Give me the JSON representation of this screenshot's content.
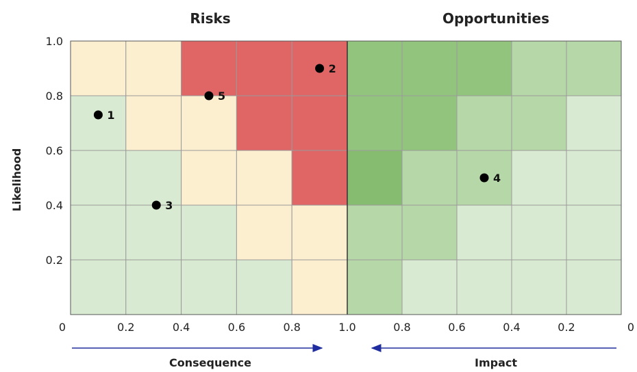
{
  "chart_data": {
    "type": "heatmap",
    "panels": [
      {
        "title": "Risks",
        "xlabel": "Consequence",
        "x_ticks": [
          "0",
          "0.2",
          "0.4",
          "0.6",
          "0.8",
          "1.0"
        ],
        "x_range": [
          0,
          1
        ],
        "x_direction": "increasing-right",
        "cells_rows_top_to_bottom": [
          [
            "#fcefcf",
            "#fcefcf",
            "#e06666",
            "#e06666",
            "#e06666"
          ],
          [
            "#d9ead3",
            "#fcefcf",
            "#fcefcf",
            "#e06666",
            "#e06666"
          ],
          [
            "#d9ead3",
            "#d9ead3",
            "#fcefcf",
            "#fcefcf",
            "#e06666"
          ],
          [
            "#d9ead3",
            "#d9ead3",
            "#d9ead3",
            "#fcefcf",
            "#fcefcf"
          ],
          [
            "#d9ead3",
            "#d9ead3",
            "#d9ead3",
            "#d9ead3",
            "#fcefcf"
          ]
        ],
        "points": [
          {
            "label": "1",
            "x": 0.1,
            "y": 0.73
          },
          {
            "label": "2",
            "x": 0.9,
            "y": 0.9
          },
          {
            "label": "3",
            "x": 0.31,
            "y": 0.4
          },
          {
            "label": "5",
            "x": 0.5,
            "y": 0.8
          }
        ]
      },
      {
        "title": "Opportunities",
        "xlabel": "Impact",
        "x_ticks": [
          "1.0",
          "0.8",
          "0.6",
          "0.4",
          "0.2",
          "0"
        ],
        "x_range": [
          1,
          0
        ],
        "x_direction": "decreasing-right",
        "cells_rows_top_to_bottom": [
          [
            "#93c47d",
            "#93c47d",
            "#93c47d",
            "#b6d7a8",
            "#b6d7a8"
          ],
          [
            "#93c47d",
            "#93c47d",
            "#b6d7a8",
            "#b6d7a8",
            "#d9ead3"
          ],
          [
            "#86bc70",
            "#b6d7a8",
            "#b6d7a8",
            "#d9ead3",
            "#d9ead3"
          ],
          [
            "#b6d7a8",
            "#b6d7a8",
            "#d9ead3",
            "#d9ead3",
            "#d9ead3"
          ],
          [
            "#b6d7a8",
            "#d9ead3",
            "#d9ead3",
            "#d9ead3",
            "#d9ead3"
          ]
        ],
        "points": [
          {
            "label": "4",
            "x": 0.5,
            "y": 0.5
          }
        ]
      }
    ],
    "ylabel": "Likelihood",
    "y_ticks": [
      "0.2",
      "0.4",
      "0.6",
      "0.8",
      "1.0"
    ],
    "y_range": [
      0,
      1
    ],
    "grid": true,
    "arrow_color": "#1f2d9e"
  }
}
